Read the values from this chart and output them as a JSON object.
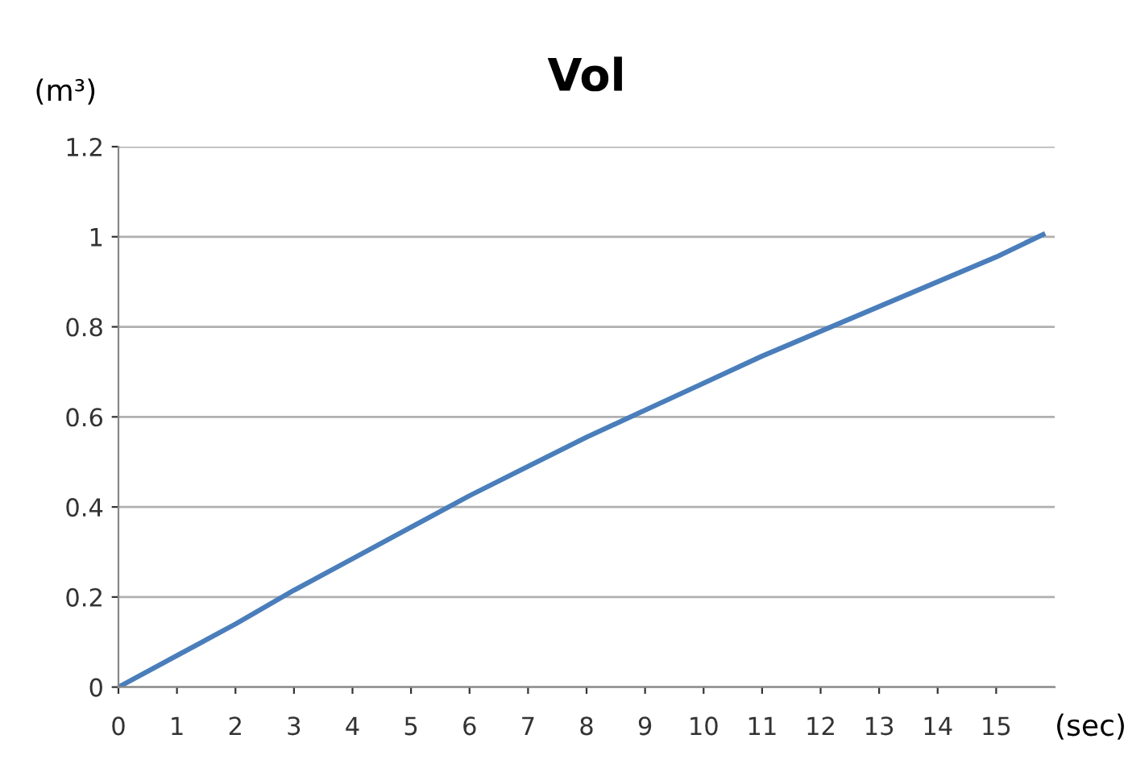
{
  "chart_data": {
    "type": "line",
    "title": "Vol",
    "xlabel": "(sec)",
    "ylabel": "(m³)",
    "x": [
      0,
      1,
      2,
      3,
      4,
      5,
      6,
      7,
      8,
      9,
      10,
      11,
      12,
      13,
      14,
      15,
      15.8
    ],
    "series": [
      {
        "color": "#4a7ebb",
        "values": [
          0,
          0.07,
          0.14,
          0.215,
          0.285,
          0.355,
          0.425,
          0.49,
          0.555,
          0.615,
          0.675,
          0.735,
          0.79,
          0.845,
          0.9,
          0.955,
          1.005
        ]
      }
    ],
    "xlim": [
      0,
      16
    ],
    "xticks": [
      0,
      1,
      2,
      3,
      4,
      5,
      6,
      7,
      8,
      9,
      10,
      11,
      12,
      13,
      14,
      15
    ],
    "ylim": [
      0,
      1.2
    ],
    "yticks": [
      {
        "value": 0,
        "label": "0"
      },
      0.2,
      0.4,
      0.6,
      0.8,
      {
        "value": 1,
        "label": "1"
      },
      1.2
    ],
    "grid": "y",
    "marker": "none",
    "line_style": "solid",
    "legend": false
  }
}
